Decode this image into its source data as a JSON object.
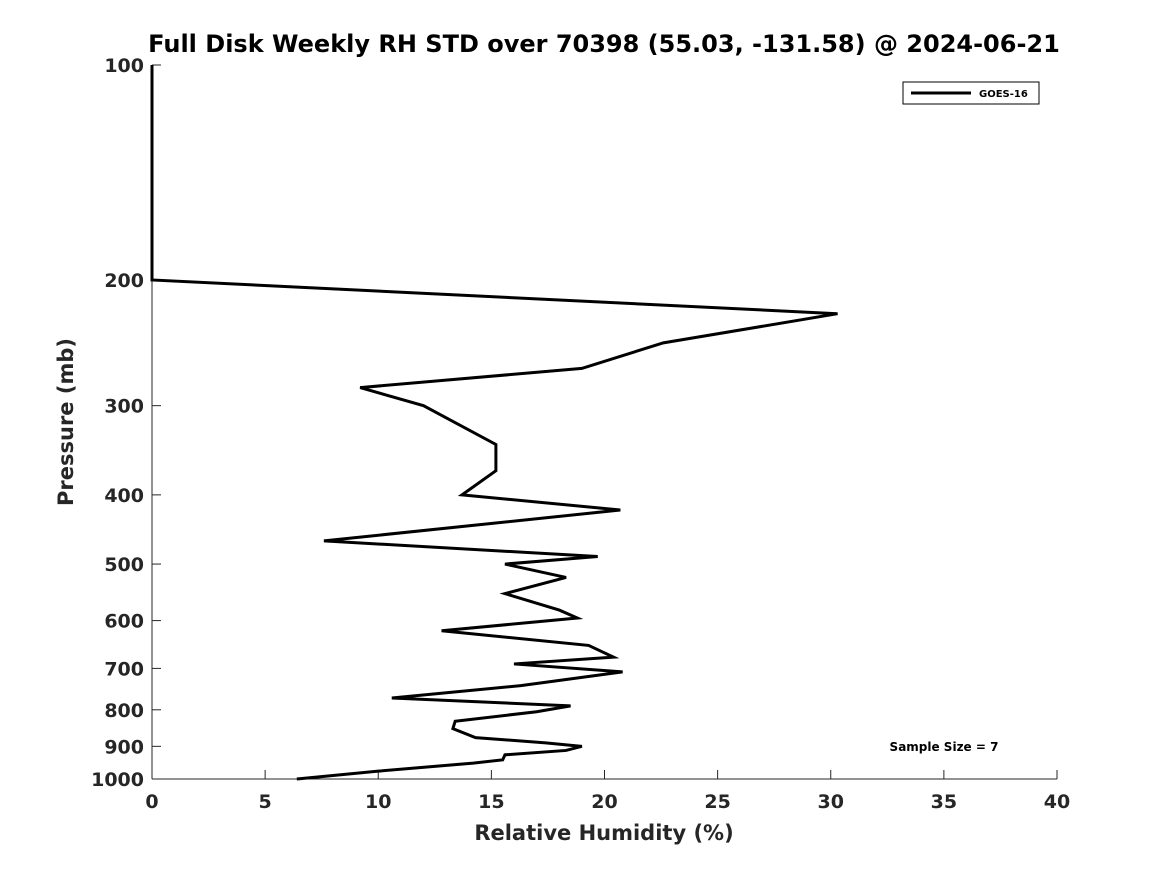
{
  "chart_data": {
    "type": "line",
    "title": "Full Disk Weekly RH STD over 70398 (55.03, -131.58) @ 2024-06-21",
    "xlabel": "Relative Humidity (%)",
    "ylabel": "Pressure (mb)",
    "xlim": [
      0,
      40
    ],
    "ylim": [
      100,
      1000
    ],
    "yscale": "log",
    "yreversed": true,
    "xticks": [
      0,
      5,
      10,
      15,
      20,
      25,
      30,
      35,
      40
    ],
    "yticks": [
      100,
      200,
      300,
      400,
      500,
      600,
      700,
      800,
      900,
      1000
    ],
    "grid": false,
    "legend_position": "top-right",
    "annotation": "Sample Size = 7",
    "series": [
      {
        "name": "GOES-16",
        "color": "#000000",
        "points": [
          {
            "x": 0.0,
            "p": 100
          },
          {
            "x": 0.0,
            "p": 150
          },
          {
            "x": 0.0,
            "p": 200
          },
          {
            "x": 30.3,
            "p": 223
          },
          {
            "x": 22.6,
            "p": 245
          },
          {
            "x": 19.0,
            "p": 266
          },
          {
            "x": 9.2,
            "p": 283
          },
          {
            "x": 12.0,
            "p": 300
          },
          {
            "x": 15.2,
            "p": 340
          },
          {
            "x": 15.2,
            "p": 370
          },
          {
            "x": 13.7,
            "p": 400
          },
          {
            "x": 20.7,
            "p": 420
          },
          {
            "x": 7.6,
            "p": 464
          },
          {
            "x": 19.7,
            "p": 488
          },
          {
            "x": 15.6,
            "p": 500
          },
          {
            "x": 18.3,
            "p": 522
          },
          {
            "x": 15.6,
            "p": 550
          },
          {
            "x": 18.0,
            "p": 580
          },
          {
            "x": 18.8,
            "p": 595
          },
          {
            "x": 12.8,
            "p": 620
          },
          {
            "x": 19.3,
            "p": 650
          },
          {
            "x": 20.4,
            "p": 675
          },
          {
            "x": 16.0,
            "p": 690
          },
          {
            "x": 20.8,
            "p": 708
          },
          {
            "x": 16.3,
            "p": 740
          },
          {
            "x": 10.6,
            "p": 770
          },
          {
            "x": 18.5,
            "p": 790
          },
          {
            "x": 17.0,
            "p": 805
          },
          {
            "x": 13.4,
            "p": 830
          },
          {
            "x": 13.3,
            "p": 850
          },
          {
            "x": 14.3,
            "p": 875
          },
          {
            "x": 17.4,
            "p": 890
          },
          {
            "x": 19.0,
            "p": 900
          },
          {
            "x": 18.3,
            "p": 912
          },
          {
            "x": 15.6,
            "p": 925
          },
          {
            "x": 15.5,
            "p": 940
          },
          {
            "x": 14.2,
            "p": 950
          },
          {
            "x": 10.0,
            "p": 975
          },
          {
            "x": 6.4,
            "p": 1000
          }
        ]
      }
    ]
  }
}
